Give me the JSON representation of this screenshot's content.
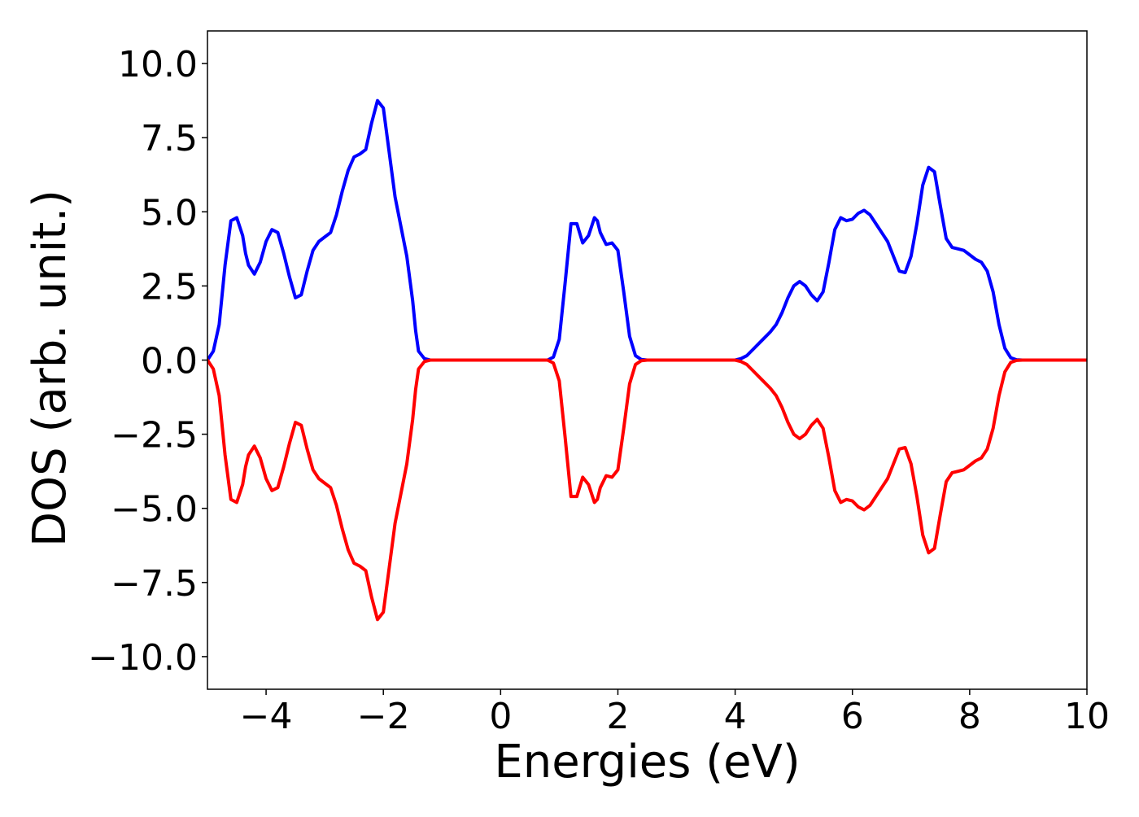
{
  "chart_data": {
    "type": "line",
    "title": "",
    "xlabel": "Energies (eV)",
    "ylabel": "DOS (arb. unit.)",
    "xlim": [
      -5,
      10
    ],
    "ylim": [
      -11.1,
      11.1
    ],
    "x_ticks": [
      -4,
      -2,
      0,
      2,
      4,
      6,
      8,
      10
    ],
    "x_tick_labels": [
      "−4",
      "−2",
      "0",
      "2",
      "4",
      "6",
      "8",
      "10"
    ],
    "y_ticks": [
      -10,
      -7.5,
      -5,
      -2.5,
      0,
      2.5,
      5,
      7.5,
      10
    ],
    "y_tick_labels": [
      "−10.0",
      "−7.5",
      "−5.0",
      "−2.5",
      "0.0",
      "2.5",
      "5.0",
      "7.5",
      "10.0"
    ],
    "grid": false,
    "legend": "none",
    "series": [
      {
        "color": "#0000ff",
        "x": [
          -5,
          -4.9,
          -4.8,
          -4.7,
          -4.6,
          -4.5,
          -4.4,
          -4.35,
          -4.3,
          -4.2,
          -4.1,
          -4.0,
          -3.9,
          -3.8,
          -3.7,
          -3.6,
          -3.5,
          -3.4,
          -3.3,
          -3.2,
          -3.1,
          -3.0,
          -2.9,
          -2.8,
          -2.7,
          -2.6,
          -2.5,
          -2.4,
          -2.3,
          -2.2,
          -2.1,
          -2.0,
          -1.9,
          -1.8,
          -1.7,
          -1.6,
          -1.5,
          -1.45,
          -1.4,
          -1.3,
          -1.2,
          -1.1,
          -1.0,
          -0.9,
          -0.8,
          -0.7,
          -0.6,
          -0.5,
          0.0,
          0.5,
          0.8,
          0.9,
          1.0,
          1.1,
          1.2,
          1.3,
          1.4,
          1.5,
          1.6,
          1.65,
          1.7,
          1.8,
          1.9,
          2.0,
          2.1,
          2.2,
          2.3,
          2.4,
          2.5,
          2.6,
          2.7,
          2.8,
          2.9,
          3.0,
          3.5,
          4.0,
          4.1,
          4.2,
          4.3,
          4.4,
          4.5,
          4.6,
          4.7,
          4.8,
          4.9,
          5.0,
          5.1,
          5.2,
          5.3,
          5.4,
          5.5,
          5.6,
          5.7,
          5.8,
          5.9,
          6.0,
          6.1,
          6.2,
          6.3,
          6.4,
          6.5,
          6.6,
          6.7,
          6.8,
          6.9,
          7.0,
          7.1,
          7.2,
          7.3,
          7.4,
          7.5,
          7.6,
          7.7,
          7.8,
          7.9,
          8.0,
          8.1,
          8.2,
          8.3,
          8.4,
          8.5,
          8.6,
          8.7,
          8.8,
          8.9,
          9.0,
          9.1,
          9.2,
          9.3,
          9.5,
          10.0
        ],
        "y": [
          0.0,
          0.3,
          1.2,
          3.2,
          4.7,
          4.8,
          4.2,
          3.6,
          3.2,
          2.9,
          3.3,
          4.0,
          4.4,
          4.3,
          3.6,
          2.8,
          2.1,
          2.2,
          3.0,
          3.7,
          4.0,
          4.15,
          4.3,
          4.9,
          5.7,
          6.4,
          6.85,
          6.95,
          7.1,
          8.0,
          8.75,
          8.5,
          7.0,
          5.5,
          4.5,
          3.5,
          2.0,
          1.0,
          0.3,
          0.05,
          0.0,
          0.0,
          0.0,
          0.0,
          0.0,
          0.0,
          0.0,
          0.0,
          0.0,
          0.0,
          0.0,
          0.1,
          0.7,
          2.6,
          4.6,
          4.6,
          3.95,
          4.2,
          4.8,
          4.7,
          4.3,
          3.9,
          3.95,
          3.7,
          2.3,
          0.8,
          0.15,
          0.02,
          0.0,
          0.0,
          0.0,
          0.0,
          0.0,
          0.0,
          0.0,
          0.0,
          0.05,
          0.15,
          0.35,
          0.55,
          0.75,
          0.95,
          1.2,
          1.6,
          2.1,
          2.5,
          2.65,
          2.5,
          2.2,
          2.0,
          2.3,
          3.3,
          4.4,
          4.8,
          4.7,
          4.75,
          4.95,
          5.05,
          4.9,
          4.6,
          4.3,
          4.0,
          3.5,
          3.0,
          2.95,
          3.5,
          4.6,
          5.9,
          6.5,
          6.35,
          5.2,
          4.1,
          3.8,
          3.75,
          3.7,
          3.55,
          3.4,
          3.3,
          3.0,
          2.3,
          1.2,
          0.4,
          0.08,
          0.01,
          0.0,
          0.0,
          0.0,
          0.0,
          0.0,
          0.0,
          0.0
        ]
      },
      {
        "color": "#ff0000",
        "x": [
          -5,
          -4.9,
          -4.8,
          -4.7,
          -4.6,
          -4.5,
          -4.4,
          -4.35,
          -4.3,
          -4.2,
          -4.1,
          -4.0,
          -3.9,
          -3.8,
          -3.7,
          -3.6,
          -3.5,
          -3.4,
          -3.3,
          -3.2,
          -3.1,
          -3.0,
          -2.9,
          -2.8,
          -2.7,
          -2.6,
          -2.5,
          -2.4,
          -2.3,
          -2.2,
          -2.1,
          -2.0,
          -1.9,
          -1.8,
          -1.7,
          -1.6,
          -1.5,
          -1.45,
          -1.4,
          -1.3,
          -1.2,
          -1.1,
          -1.0,
          -0.9,
          -0.8,
          -0.7,
          -0.6,
          -0.5,
          0.0,
          0.5,
          0.8,
          0.9,
          1.0,
          1.1,
          1.2,
          1.3,
          1.4,
          1.5,
          1.6,
          1.65,
          1.7,
          1.8,
          1.9,
          2.0,
          2.1,
          2.2,
          2.3,
          2.4,
          2.5,
          2.6,
          2.7,
          2.8,
          2.9,
          3.0,
          3.5,
          4.0,
          4.1,
          4.2,
          4.3,
          4.4,
          4.5,
          4.6,
          4.7,
          4.8,
          4.9,
          5.0,
          5.1,
          5.2,
          5.3,
          5.4,
          5.5,
          5.6,
          5.7,
          5.8,
          5.9,
          6.0,
          6.1,
          6.2,
          6.3,
          6.4,
          6.5,
          6.6,
          6.7,
          6.8,
          6.9,
          7.0,
          7.1,
          7.2,
          7.3,
          7.4,
          7.5,
          7.6,
          7.7,
          7.8,
          7.9,
          8.0,
          8.1,
          8.2,
          8.3,
          8.4,
          8.5,
          8.6,
          8.7,
          8.8,
          8.9,
          9.0,
          9.1,
          9.2,
          9.3,
          9.5,
          10.0
        ],
        "y": [
          -0.0,
          -0.3,
          -1.2,
          -3.2,
          -4.7,
          -4.8,
          -4.2,
          -3.6,
          -3.2,
          -2.9,
          -3.3,
          -4.0,
          -4.4,
          -4.3,
          -3.6,
          -2.8,
          -2.1,
          -2.2,
          -3.0,
          -3.7,
          -4.0,
          -4.15,
          -4.3,
          -4.9,
          -5.7,
          -6.4,
          -6.85,
          -6.95,
          -7.1,
          -8.0,
          -8.75,
          -8.5,
          -7.0,
          -5.5,
          -4.5,
          -3.5,
          -2.0,
          -1.0,
          -0.3,
          -0.05,
          -0.0,
          -0.0,
          -0.0,
          -0.0,
          -0.0,
          -0.0,
          -0.0,
          -0.0,
          -0.0,
          -0.0,
          -0.0,
          -0.1,
          -0.7,
          -2.6,
          -4.6,
          -4.6,
          -3.95,
          -4.2,
          -4.8,
          -4.7,
          -4.3,
          -3.9,
          -3.95,
          -3.7,
          -2.3,
          -0.8,
          -0.15,
          -0.02,
          -0.0,
          -0.0,
          -0.0,
          -0.0,
          -0.0,
          -0.0,
          -0.0,
          -0.0,
          -0.05,
          -0.15,
          -0.35,
          -0.55,
          -0.75,
          -0.95,
          -1.2,
          -1.6,
          -2.1,
          -2.5,
          -2.65,
          -2.5,
          -2.2,
          -2.0,
          -2.3,
          -3.3,
          -4.4,
          -4.8,
          -4.7,
          -4.75,
          -4.95,
          -5.05,
          -4.9,
          -4.6,
          -4.3,
          -4.0,
          -3.5,
          -3.0,
          -2.95,
          -3.5,
          -4.6,
          -5.9,
          -6.5,
          -6.35,
          -5.2,
          -4.1,
          -3.8,
          -3.75,
          -3.7,
          -3.55,
          -3.4,
          -3.3,
          -3.0,
          -2.3,
          -1.2,
          -0.4,
          -0.08,
          -0.01,
          -0.0,
          -0.0,
          -0.0,
          -0.0,
          -0.0,
          -0.0,
          -0.0
        ]
      }
    ]
  }
}
